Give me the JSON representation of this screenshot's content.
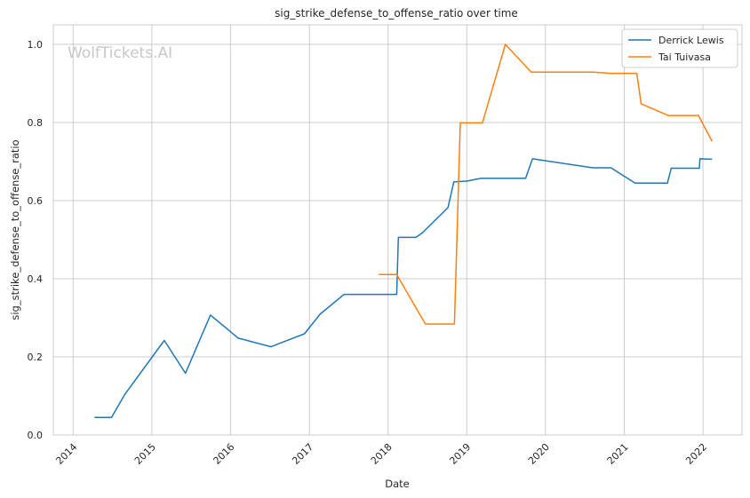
{
  "chart_data": {
    "type": "line",
    "title": "sig_strike_defense_to_offense_ratio over time",
    "xlabel": "Date",
    "ylabel": "sig_strike_defense_to_offense_ratio",
    "watermark": "WolfTickets.AI",
    "xlim": [
      "2013-10-01",
      "2022-07-01"
    ],
    "ylim": [
      0.0,
      1.05
    ],
    "x_ticks": [
      "2014",
      "2015",
      "2016",
      "2017",
      "2018",
      "2019",
      "2020",
      "2021",
      "2022"
    ],
    "y_ticks": [
      "0.0",
      "0.2",
      "0.4",
      "0.6",
      "0.8",
      "1.0"
    ],
    "grid": true,
    "legend_position": "top-right",
    "series": [
      {
        "name": "Derrick Lewis",
        "color": "#1f77b4",
        "points": [
          [
            "2014-04-10",
            0.045
          ],
          [
            "2014-06-28",
            0.045
          ],
          [
            "2014-08-30",
            0.105
          ],
          [
            "2015-02-28",
            0.242
          ],
          [
            "2015-06-06",
            0.158
          ],
          [
            "2015-09-30",
            0.307
          ],
          [
            "2016-02-06",
            0.248
          ],
          [
            "2016-07-07",
            0.226
          ],
          [
            "2016-12-09",
            0.259
          ],
          [
            "2017-02-19",
            0.309
          ],
          [
            "2017-06-11",
            0.36
          ],
          [
            "2018-02-10",
            0.36
          ],
          [
            "2018-02-18",
            0.506
          ],
          [
            "2018-05-10",
            0.506
          ],
          [
            "2018-06-10",
            0.518
          ],
          [
            "2018-10-06",
            0.582
          ],
          [
            "2018-11-02",
            0.648
          ],
          [
            "2019-01-01",
            0.65
          ],
          [
            "2019-03-09",
            0.657
          ],
          [
            "2019-10-01",
            0.657
          ],
          [
            "2019-11-02",
            0.707
          ],
          [
            "2020-08-08",
            0.684
          ],
          [
            "2020-10-31",
            0.684
          ],
          [
            "2021-02-20",
            0.645
          ],
          [
            "2021-07-20",
            0.645
          ],
          [
            "2021-08-07",
            0.683
          ],
          [
            "2021-12-15",
            0.683
          ],
          [
            "2021-12-18",
            0.707
          ],
          [
            "2022-02-12",
            0.706
          ]
        ]
      },
      {
        "name": "Tai Tuivasa",
        "color": "#ff7f0e",
        "points": [
          [
            "2017-11-19",
            0.411
          ],
          [
            "2018-02-10",
            0.411
          ],
          [
            "2018-06-23",
            0.284
          ],
          [
            "2018-11-05",
            0.284
          ],
          [
            "2018-12-02",
            0.799
          ],
          [
            "2019-03-15",
            0.799
          ],
          [
            "2019-06-29",
            1.0
          ],
          [
            "2019-10-27",
            0.929
          ],
          [
            "2020-08-10",
            0.929
          ],
          [
            "2020-10-31",
            0.926
          ],
          [
            "2021-02-28",
            0.926
          ],
          [
            "2021-03-20",
            0.848
          ],
          [
            "2021-07-24",
            0.818
          ],
          [
            "2021-12-11",
            0.818
          ],
          [
            "2022-02-12",
            0.752
          ]
        ]
      }
    ]
  }
}
